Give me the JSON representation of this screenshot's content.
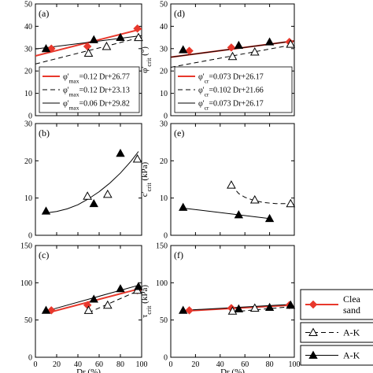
{
  "chart_data": [
    {
      "id": "a",
      "type": "scatter",
      "panel_label": "(a)",
      "ylabel": "",
      "xlabel": "",
      "xlim": [
        0,
        100
      ],
      "ylim": [
        0,
        50
      ],
      "xticks": [
        0,
        20,
        40,
        60,
        80,
        100
      ],
      "yticks": [
        0,
        10,
        20,
        30,
        40,
        50
      ],
      "show_x_tick_labels": false,
      "series": [
        {
          "marker": "diamond",
          "color": "#e8382c",
          "x": [
            15,
            49,
            96
          ],
          "y": [
            30,
            31,
            39
          ]
        },
        {
          "marker": "triangle-open",
          "color": "#000000",
          "x": [
            50,
            67,
            97
          ],
          "y": [
            28,
            31,
            35
          ]
        },
        {
          "marker": "triangle-filled",
          "color": "#000000",
          "x": [
            10,
            55,
            80
          ],
          "y": [
            30,
            34,
            35
          ]
        }
      ],
      "fits": [
        {
          "style": "solid-red",
          "x": [
            0,
            100
          ],
          "y": [
            26.77,
            38.77
          ],
          "label": "φ'max=0.12 Dr+26.77"
        },
        {
          "style": "dashed",
          "x": [
            0,
            100
          ],
          "y": [
            23.13,
            35.13
          ],
          "label": "φ'max=0.12 Dr+23.13"
        },
        {
          "style": "solid-thin",
          "x": [
            0,
            100
          ],
          "y": [
            29.82,
            35.82
          ],
          "label": "φ'max=0.06 Dr+29.82"
        }
      ],
      "legend": "bottom-right"
    },
    {
      "id": "b",
      "type": "scatter",
      "panel_label": "(b)",
      "ylabel": "",
      "xlabel": "",
      "xlim": [
        0,
        100
      ],
      "ylim": [
        0,
        30
      ],
      "xticks": [
        0,
        20,
        40,
        60,
        80,
        100
      ],
      "yticks": [
        0,
        10,
        20,
        30
      ],
      "show_x_tick_labels": false,
      "series": [
        {
          "marker": "triangle-open",
          "color": "#000000",
          "x": [
            49,
            68,
            96
          ],
          "y": [
            10.5,
            11,
            20.5
          ]
        },
        {
          "marker": "triangle-filled",
          "color": "#000000",
          "x": [
            10,
            55,
            80
          ],
          "y": [
            6.5,
            8.5,
            22
          ]
        }
      ],
      "fits": [
        {
          "style": "curve-solid",
          "x": [
            10,
            20,
            30,
            40,
            50,
            60,
            70,
            80,
            90,
            97
          ],
          "y": [
            6,
            6.4,
            7.1,
            8.2,
            9.8,
            11.7,
            14,
            16.7,
            19.9,
            22.5
          ]
        }
      ]
    },
    {
      "id": "c",
      "type": "scatter",
      "panel_label": "(c)",
      "ylabel": "",
      "xlabel": "Dr (%)",
      "xlim": [
        0,
        100
      ],
      "ylim": [
        0,
        150
      ],
      "xticks": [
        0,
        20,
        40,
        60,
        80,
        100
      ],
      "yticks": [
        0,
        50,
        100,
        150
      ],
      "show_x_tick_labels": true,
      "series": [
        {
          "marker": "diamond",
          "color": "#e8382c",
          "x": [
            15,
            49,
            96
          ],
          "y": [
            63,
            70,
            90
          ]
        },
        {
          "marker": "triangle-open",
          "color": "#000000",
          "x": [
            50,
            68,
            96
          ],
          "y": [
            63,
            70,
            90
          ]
        },
        {
          "marker": "triangle-filled",
          "color": "#000000",
          "x": [
            10,
            55,
            80,
            97
          ],
          "y": [
            63,
            78,
            92,
            95
          ]
        }
      ],
      "fits": [
        {
          "style": "solid-red",
          "x": [
            15,
            98
          ],
          "y": [
            61,
            92
          ]
        },
        {
          "style": "dashed",
          "x": [
            50,
            98
          ],
          "y": [
            60,
            90
          ]
        },
        {
          "style": "solid-thin",
          "x": [
            10,
            98
          ],
          "y": [
            62,
            97
          ]
        }
      ]
    },
    {
      "id": "d",
      "type": "scatter",
      "panel_label": "(d)",
      "ylabel": "φ'crit (°)",
      "xlabel": "",
      "xlim": [
        0,
        100
      ],
      "ylim": [
        0,
        50
      ],
      "xticks": [
        0,
        20,
        40,
        60,
        80,
        100
      ],
      "yticks": [
        0,
        10,
        20,
        30,
        40,
        50
      ],
      "show_x_tick_labels": false,
      "series": [
        {
          "marker": "diamond",
          "color": "#e8382c",
          "x": [
            15,
            49,
            96
          ],
          "y": [
            29,
            30.5,
            33
          ]
        },
        {
          "marker": "triangle-open",
          "color": "#000000",
          "x": [
            50,
            68,
            97
          ],
          "y": [
            26.5,
            28.5,
            32
          ]
        },
        {
          "marker": "triangle-filled",
          "color": "#000000",
          "x": [
            10,
            55,
            80
          ],
          "y": [
            29.5,
            31.5,
            33
          ]
        }
      ],
      "fits": [
        {
          "style": "solid-red",
          "x": [
            0,
            100
          ],
          "y": [
            26.17,
            33.47
          ],
          "label": "φ'cr=0.073 Dr+26.17"
        },
        {
          "style": "dashed",
          "x": [
            0,
            100
          ],
          "y": [
            21.66,
            31.86
          ],
          "label": "φ'cr=0.102 Dr+21.66"
        },
        {
          "style": "solid-thin",
          "x": [
            0,
            100
          ],
          "y": [
            26.17,
            33.47
          ],
          "label": "φ'cr=0.073 Dr+26.17"
        }
      ],
      "legend": "bottom-right"
    },
    {
      "id": "e",
      "type": "scatter",
      "panel_label": "(e)",
      "ylabel": "c'crit (kPa)",
      "xlabel": "",
      "xlim": [
        0,
        100
      ],
      "ylim": [
        0,
        30
      ],
      "xticks": [
        0,
        20,
        40,
        60,
        80,
        100
      ],
      "yticks": [
        0,
        10,
        20,
        30
      ],
      "show_x_tick_labels": false,
      "series": [
        {
          "marker": "triangle-open",
          "color": "#000000",
          "x": [
            49,
            68,
            97
          ],
          "y": [
            13.5,
            9.5,
            8.5
          ]
        },
        {
          "marker": "triangle-filled",
          "color": "#000000",
          "x": [
            10,
            55,
            80
          ],
          "y": [
            7.5,
            5.5,
            4.5
          ]
        }
      ],
      "fits": [
        {
          "style": "dashed",
          "x": [
            49,
            55,
            60,
            68,
            75,
            85,
            97
          ],
          "y": [
            13.5,
            11.2,
            10.2,
            9.3,
            8.8,
            8.5,
            8.5
          ]
        },
        {
          "style": "solid-thin",
          "x": [
            10,
            80
          ],
          "y": [
            7.3,
            4.5
          ]
        }
      ]
    },
    {
      "id": "f",
      "type": "scatter",
      "panel_label": "(f)",
      "ylabel": "τcrit (kPa)",
      "xlabel": "Dr (%)",
      "xlim": [
        0,
        100
      ],
      "ylim": [
        0,
        150
      ],
      "xticks": [
        0,
        20,
        40,
        60,
        80,
        100
      ],
      "yticks": [
        0,
        50,
        100,
        150
      ],
      "show_x_tick_labels": true,
      "series": [
        {
          "marker": "diamond",
          "color": "#e8382c",
          "x": [
            15,
            49,
            96
          ],
          "y": [
            63,
            66,
            70
          ]
        },
        {
          "marker": "triangle-open",
          "color": "#000000",
          "x": [
            50,
            68,
            97
          ],
          "y": [
            62,
            66,
            70
          ]
        },
        {
          "marker": "triangle-filled",
          "color": "#000000",
          "x": [
            10,
            55,
            80,
            97
          ],
          "y": [
            63,
            65,
            67,
            70
          ]
        }
      ],
      "fits": [
        {
          "style": "solid-red",
          "x": [
            10,
            98
          ],
          "y": [
            62,
            70
          ]
        },
        {
          "style": "dashed",
          "x": [
            50,
            98
          ],
          "y": [
            61,
            68
          ]
        },
        {
          "style": "solid-thin",
          "x": [
            10,
            98
          ],
          "y": [
            63,
            71
          ]
        }
      ]
    }
  ],
  "side_legend": {
    "entries": [
      {
        "marker": "diamond",
        "line": "solid-red",
        "label_lines": [
          "Clea",
          "sand"
        ]
      },
      {
        "marker": "triangle-open",
        "line": "dashed",
        "label_lines": [
          "A-K"
        ]
      },
      {
        "marker": "triangle-filled",
        "line": "solid-thin",
        "label_lines": [
          "A-K"
        ]
      }
    ]
  },
  "colors": {
    "red": "#e8382c",
    "black": "#000000"
  }
}
